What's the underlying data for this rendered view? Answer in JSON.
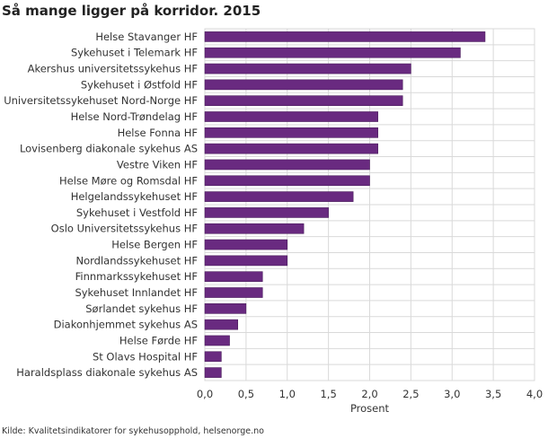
{
  "chart_data": {
    "type": "bar",
    "orientation": "horizontal",
    "title": "Så mange ligger på korridor. 2015",
    "xlabel": "Prosent",
    "ylabel": "",
    "xlim": [
      0,
      4.0
    ],
    "xticks": [
      "0,0",
      "0,5",
      "1,0",
      "1,5",
      "2,0",
      "2,5",
      "3,0",
      "3,5",
      "4,0"
    ],
    "grid": true,
    "bar_color": "#692a80",
    "categories": [
      "Helse Stavanger HF",
      "Sykehuset i Telemark HF",
      "Akershus universitetssykehus HF",
      "Sykehuset i Østfold HF",
      "Universitetssykehuset Nord-Norge HF",
      "Helse Nord-Trøndelag HF",
      "Helse Fonna HF",
      "Lovisenberg diakonale sykehus AS",
      "Vestre Viken HF",
      "Helse Møre og Romsdal HF",
      "Helgelandssykehuset HF",
      "Sykehuset i Vestfold HF",
      "Oslo Universitetssykehus HF",
      "Helse Bergen HF",
      "Nordlandssykehuset HF",
      "Finnmarkssykehuset HF",
      "Sykehuset Innlandet HF",
      "Sørlandet sykehus HF",
      "Diakonhjemmet sykehus AS",
      "Helse Førde HF",
      "St Olavs Hospital HF",
      "Haraldsplass diakonale sykehus AS"
    ],
    "values": [
      3.4,
      3.1,
      2.5,
      2.4,
      2.4,
      2.1,
      2.1,
      2.1,
      2.0,
      2.0,
      1.8,
      1.5,
      1.2,
      1.0,
      1.0,
      0.7,
      0.7,
      0.5,
      0.4,
      0.3,
      0.2,
      0.2
    ],
    "source": "Kilde: Kvalitetsindikatorer for sykehusopphold, helsenorge.no"
  }
}
